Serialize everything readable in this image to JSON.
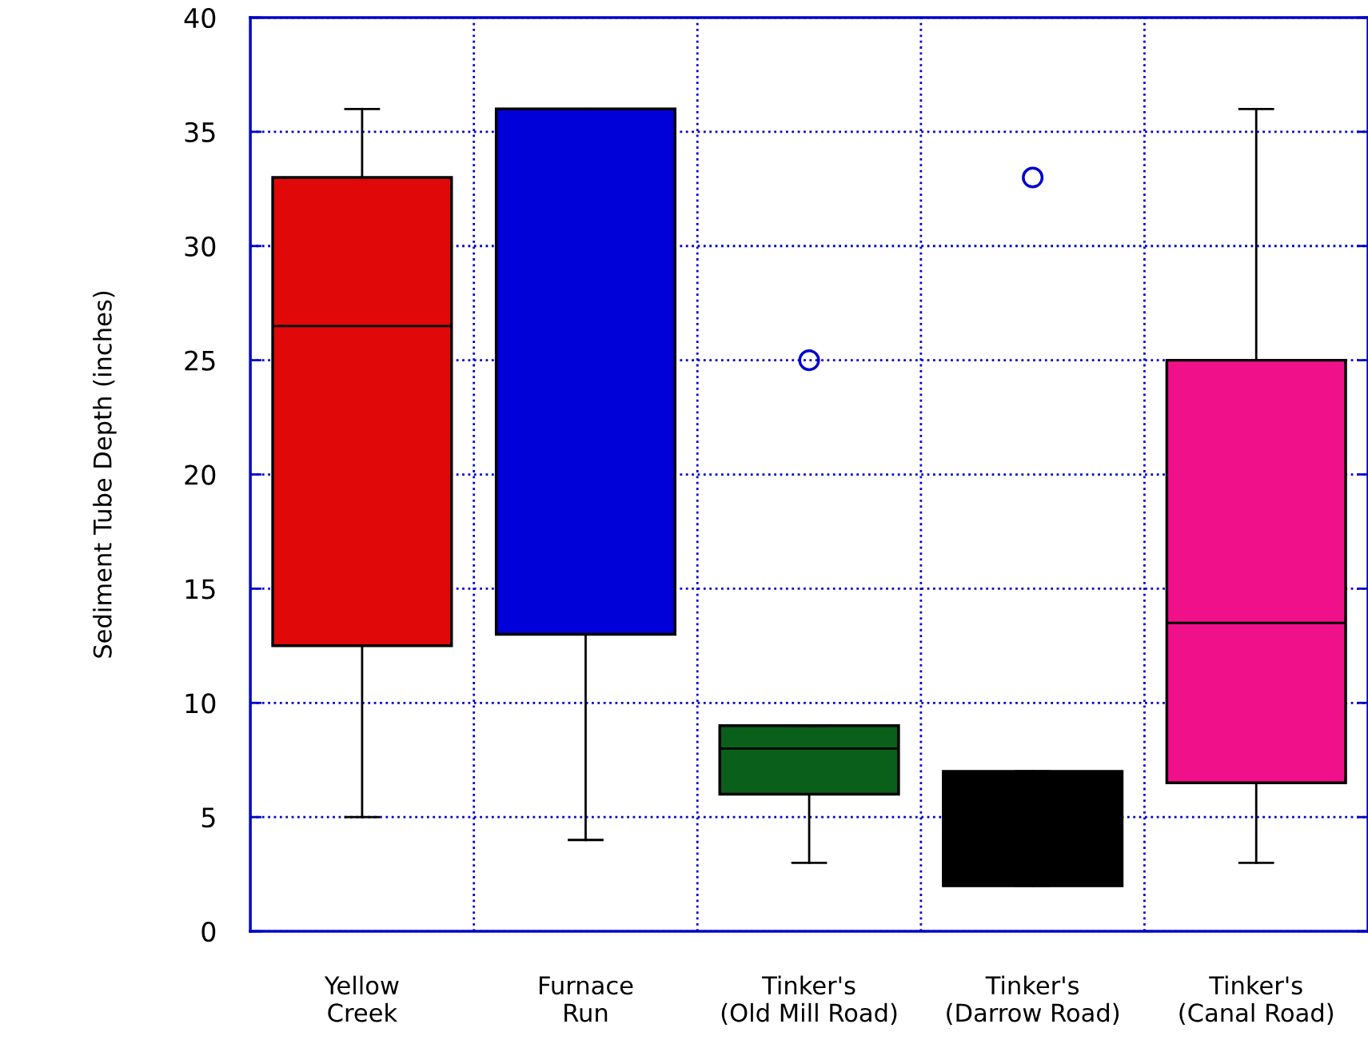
{
  "chart_data": {
    "type": "box",
    "ylabel": "Sediment Tube Depth (inches)",
    "categories": [
      "Yellow\nCreek",
      "Furnace\nRun",
      "Tinker's\n(Old Mill Road)",
      "Tinker's\n(Darrow Road)",
      "Tinker's\n(Canal Road)"
    ],
    "colors": [
      "#e00808",
      "#0000d8",
      "#0a5f1a",
      "#000000",
      "#f0108a"
    ],
    "boxes": [
      {
        "low": 5,
        "q1": 12.5,
        "median": 26.5,
        "q3": 33,
        "high": 36
      },
      {
        "low": 4,
        "q1": 13,
        "median": 36,
        "q3": 36,
        "high": 36
      },
      {
        "low": 3,
        "q1": 6,
        "median": 8,
        "q3": 9,
        "high": 9,
        "outliers": [
          25
        ]
      },
      {
        "low": 2,
        "q1": 2,
        "median": 2,
        "q3": 7,
        "high": 7,
        "outliers": [
          33
        ]
      },
      {
        "low": 3,
        "q1": 6.5,
        "median": 13.5,
        "q3": 25,
        "high": 36
      }
    ],
    "ylim": [
      0,
      40
    ],
    "yticks": [
      0,
      5,
      10,
      15,
      20,
      25,
      30,
      35,
      40
    ],
    "grid": true
  }
}
